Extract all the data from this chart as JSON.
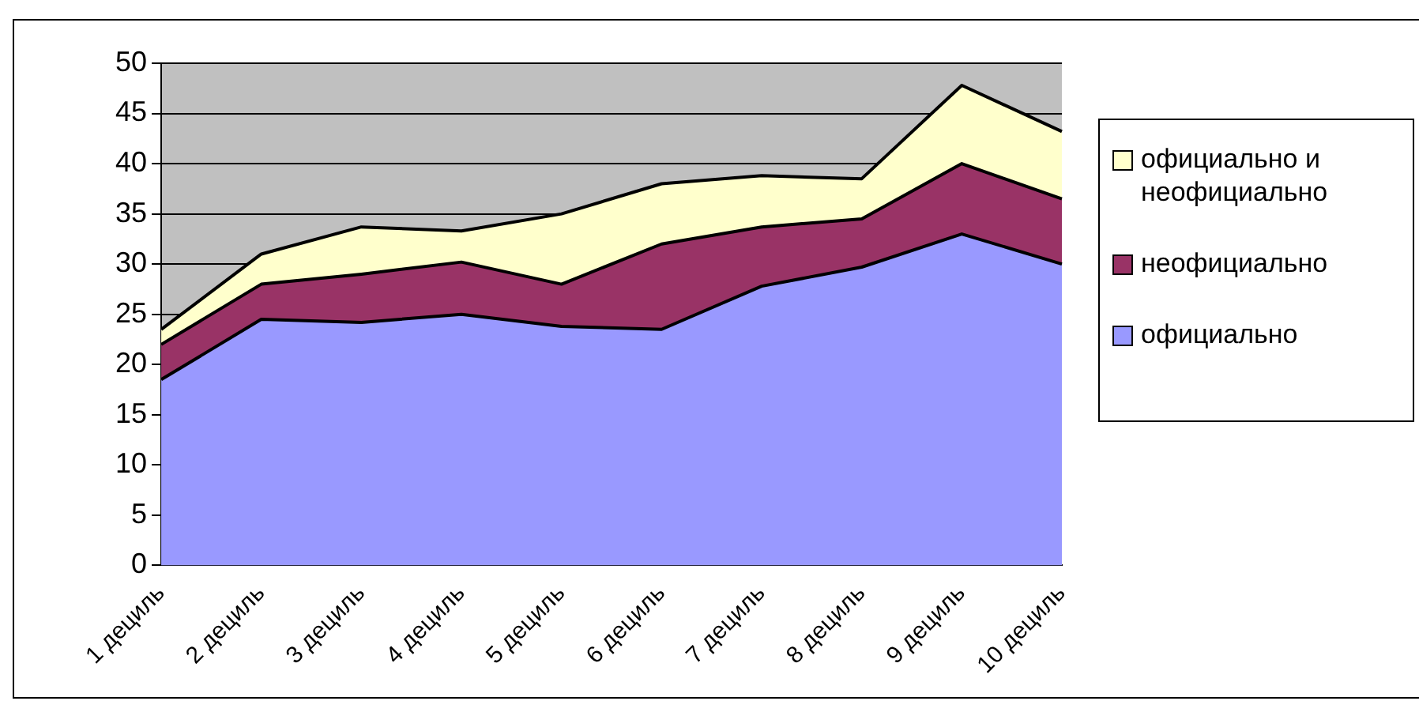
{
  "chart_data": {
    "type": "area",
    "stacked": true,
    "categories": [
      "1 дециль",
      "2 дециль",
      "3 дециль",
      "4 дециль",
      "5 дециль",
      "6 дециль",
      "7 дециль",
      "8 дециль",
      "9 дециль",
      "10 дециль"
    ],
    "series": [
      {
        "name": "официально",
        "color": "#9999ff",
        "values": [
          18.5,
          24.5,
          24.2,
          25,
          23.8,
          23.5,
          27.8,
          29.7,
          33,
          30
        ]
      },
      {
        "name": "неофициально",
        "color": "#993366",
        "values": [
          3.5,
          3.5,
          4.8,
          5.2,
          4.2,
          8.5,
          5.9,
          4.8,
          7,
          6.5
        ]
      },
      {
        "name": "официально и неофициально",
        "color": "#ffffcc",
        "values": [
          1.5,
          3,
          4.7,
          3.1,
          7,
          6,
          5.1,
          4,
          7.8,
          6.7
        ]
      }
    ],
    "ylim": [
      0,
      50
    ],
    "yticks": [
      0,
      5,
      10,
      15,
      20,
      25,
      30,
      35,
      40,
      45,
      50
    ],
    "grid": "y",
    "legend": "right"
  }
}
